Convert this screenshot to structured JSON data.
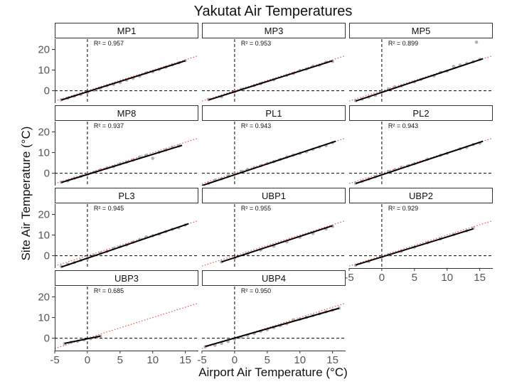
{
  "chart_data": {
    "type": "scatter",
    "title": "Yakutat Air Temperatures",
    "xlabel": "Airport Air Temperature (°C)",
    "ylabel": "Site Air Temperature (°C)",
    "xlim": [
      -5,
      17
    ],
    "ylim": [
      -6,
      25
    ],
    "xticks": [
      -5,
      0,
      5,
      10,
      15
    ],
    "yticks": [
      0,
      10,
      20
    ],
    "reference_lines": {
      "x": 0,
      "y": 0,
      "style": "dashed"
    },
    "one_to_one_line": {
      "color": "#e8504f",
      "style": "dotted"
    },
    "r2_prefix": "R² = ",
    "panels": [
      {
        "name": "MP1",
        "r2": "0.957",
        "fit": {
          "x": [
            -4,
            15
          ],
          "y": [
            -4.5,
            14.5
          ]
        },
        "points": [
          [
            -4,
            -4.4
          ],
          [
            -3,
            -3.6
          ],
          [
            -2,
            -2.6
          ],
          [
            -1,
            -1.8
          ],
          [
            0,
            -0.8
          ],
          [
            1,
            0.2
          ],
          [
            2,
            1.2
          ],
          [
            3,
            2.4
          ],
          [
            4,
            3.1
          ],
          [
            5,
            4.0
          ],
          [
            6,
            5.1
          ],
          [
            7,
            6.0
          ],
          [
            8,
            7.1
          ],
          [
            9,
            8.6
          ],
          [
            10,
            9.2
          ],
          [
            11,
            10.3
          ],
          [
            12,
            11.4
          ],
          [
            13,
            12.6
          ],
          [
            14,
            13.5
          ],
          [
            15,
            14.6
          ]
        ]
      },
      {
        "name": "MP3",
        "r2": "0.953",
        "fit": {
          "x": [
            -4,
            15
          ],
          "y": [
            -4.5,
            14.5
          ]
        },
        "points": [
          [
            -4,
            -4.2
          ],
          [
            -2,
            -2.9
          ],
          [
            0,
            -0.5
          ],
          [
            1,
            0.7
          ],
          [
            3,
            2.5
          ],
          [
            4,
            3.4
          ],
          [
            6,
            5.3
          ],
          [
            8,
            7.5
          ],
          [
            9,
            8.4
          ],
          [
            10,
            9.8
          ],
          [
            11,
            10.5
          ],
          [
            12,
            11.9
          ],
          [
            13,
            12.4
          ],
          [
            14,
            13.8
          ],
          [
            15,
            14.2
          ]
        ]
      },
      {
        "name": "MP5",
        "r2": "0.899",
        "fit": {
          "x": [
            -4,
            15.5
          ],
          "y": [
            -5,
            15.5
          ]
        },
        "points": [
          [
            -4,
            -4.8
          ],
          [
            -3,
            -4.0
          ],
          [
            -2,
            -3.1
          ],
          [
            -1,
            -2.2
          ],
          [
            0,
            -0.6
          ],
          [
            1,
            0.8
          ],
          [
            2,
            1.9
          ],
          [
            3,
            2.4
          ],
          [
            5,
            4.3
          ],
          [
            6,
            5.5
          ],
          [
            8,
            7.2
          ],
          [
            9,
            8.9
          ],
          [
            10,
            9.5
          ],
          [
            11,
            11.8
          ],
          [
            12,
            12.4
          ],
          [
            13,
            13.2
          ],
          [
            14,
            14.1
          ],
          [
            14.5,
            23.5
          ],
          [
            15,
            15.2
          ]
        ]
      },
      {
        "name": "MP8",
        "r2": "0.937",
        "fit": {
          "x": [
            -4,
            14.5
          ],
          "y": [
            -4.5,
            13.5
          ]
        },
        "points": [
          [
            -4,
            -4.3
          ],
          [
            -3,
            -3.7
          ],
          [
            -2,
            -2.4
          ],
          [
            -1,
            -1.5
          ],
          [
            0,
            -0.4
          ],
          [
            1,
            0.5
          ],
          [
            2,
            1.6
          ],
          [
            3,
            2.6
          ],
          [
            4,
            3.2
          ],
          [
            5,
            4.5
          ],
          [
            6,
            5.4
          ],
          [
            7,
            6.4
          ],
          [
            8,
            7.8
          ],
          [
            9,
            8.7
          ],
          [
            10,
            7.2
          ],
          [
            11,
            10.2
          ],
          [
            12,
            11.3
          ],
          [
            13,
            12.6
          ],
          [
            14,
            13.2
          ]
        ]
      },
      {
        "name": "PL1",
        "r2": "0.943",
        "fit": {
          "x": [
            -5,
            15.5
          ],
          "y": [
            -6,
            15.5
          ]
        },
        "points": [
          [
            -5,
            -6
          ],
          [
            -4,
            -4.8
          ],
          [
            -3,
            -3.4
          ],
          [
            -2,
            -2.7
          ],
          [
            -1,
            -1.3
          ],
          [
            0,
            -0.2
          ],
          [
            1,
            0.9
          ],
          [
            2,
            1.8
          ],
          [
            3,
            2.7
          ],
          [
            4,
            3.6
          ],
          [
            5,
            4.7
          ],
          [
            6,
            5.6
          ],
          [
            7,
            6.7
          ],
          [
            8,
            7.9
          ],
          [
            9,
            8.8
          ],
          [
            10,
            9.6
          ],
          [
            11,
            10.4
          ],
          [
            12,
            11.6
          ],
          [
            13,
            12.7
          ],
          [
            14,
            13.4
          ],
          [
            15,
            14.8
          ]
        ]
      },
      {
        "name": "PL2",
        "r2": "0.943",
        "fit": {
          "x": [
            -4,
            15.5
          ],
          "y": [
            -5,
            15.5
          ]
        },
        "points": [
          [
            -4,
            -4.8
          ],
          [
            -3,
            -3.9
          ],
          [
            -2,
            -2.8
          ],
          [
            -1,
            -1.7
          ],
          [
            0,
            -0.5
          ],
          [
            1,
            0.8
          ],
          [
            2,
            1.7
          ],
          [
            3,
            2.9
          ],
          [
            4,
            3.6
          ],
          [
            5,
            4.6
          ],
          [
            7,
            6.8
          ],
          [
            9,
            8.7
          ],
          [
            10,
            9.6
          ],
          [
            12,
            11.8
          ],
          [
            13,
            12.5
          ],
          [
            14,
            13.9
          ],
          [
            15,
            14.6
          ]
        ]
      },
      {
        "name": "PL3",
        "r2": "0.945",
        "fit": {
          "x": [
            -4,
            15.5
          ],
          "y": [
            -5.5,
            15.5
          ]
        },
        "points": [
          [
            -4,
            -5.2
          ],
          [
            -3,
            -4.1
          ],
          [
            -2,
            -3.3
          ],
          [
            -1,
            -2.2
          ],
          [
            0,
            -1.4
          ],
          [
            1,
            0.3
          ],
          [
            2,
            1.2
          ],
          [
            3,
            2.1
          ],
          [
            4,
            3.5
          ],
          [
            5,
            4.4
          ],
          [
            6,
            5.2
          ],
          [
            7,
            6.6
          ],
          [
            8,
            7.8
          ],
          [
            9,
            9.1
          ],
          [
            10,
            9.7
          ],
          [
            11,
            10.4
          ],
          [
            12,
            11.7
          ],
          [
            13,
            12.8
          ],
          [
            14,
            13.5
          ],
          [
            15,
            14.9
          ]
        ]
      },
      {
        "name": "UBP1",
        "r2": "0.955",
        "fit": {
          "x": [
            -2,
            15
          ],
          "y": [
            -3,
            14.5
          ]
        },
        "points": [
          [
            -2,
            -3
          ],
          [
            0,
            -1.2
          ],
          [
            2,
            0.9
          ],
          [
            4,
            2.8
          ],
          [
            6,
            4.6
          ],
          [
            8,
            6.7
          ],
          [
            10,
            8.9
          ],
          [
            12,
            10.8
          ],
          [
            14,
            12.9
          ],
          [
            15,
            14.2
          ]
        ]
      },
      {
        "name": "UBP2",
        "r2": "0.929",
        "fit": {
          "x": [
            -4,
            14
          ],
          "y": [
            -4.5,
            13
          ]
        },
        "points": [
          [
            -4,
            -4.6
          ],
          [
            -2,
            -2.8
          ],
          [
            0,
            -0.7
          ],
          [
            1,
            0.4
          ],
          [
            3,
            2.2
          ],
          [
            5,
            4.1
          ],
          [
            7,
            6.3
          ],
          [
            9,
            8.2
          ],
          [
            11,
            10.3
          ],
          [
            13,
            12.1
          ],
          [
            14,
            13.3
          ]
        ]
      },
      {
        "name": "UBP3",
        "r2": "0.685",
        "fit": {
          "x": [
            -3.5,
            2
          ],
          "y": [
            -2.5,
            1
          ]
        },
        "points": [
          [
            -3.5,
            -2.7
          ],
          [
            -2.5,
            -2.0
          ],
          [
            -1.5,
            -1.5
          ],
          [
            -0.5,
            -0.8
          ],
          [
            0.5,
            -0.2
          ],
          [
            1.5,
            0.6
          ],
          [
            2,
            1.0
          ]
        ]
      },
      {
        "name": "UBP4",
        "r2": "0.950",
        "fit": {
          "x": [
            -4.5,
            16
          ],
          "y": [
            -4,
            14.5
          ]
        },
        "points": [
          [
            -4.5,
            -4.2
          ],
          [
            -3,
            -3.4
          ],
          [
            -2,
            -2.5
          ],
          [
            -1,
            -1.6
          ],
          [
            0,
            -0.5
          ],
          [
            1,
            0.5
          ],
          [
            2,
            1.4
          ],
          [
            3,
            2.3
          ],
          [
            4,
            3.3
          ],
          [
            5,
            4.1
          ],
          [
            6,
            5.1
          ],
          [
            7,
            6.1
          ],
          [
            8,
            7.0
          ],
          [
            9,
            8.9
          ],
          [
            10,
            9.2
          ],
          [
            11,
            10.1
          ],
          [
            12,
            10.9
          ],
          [
            13,
            11.8
          ],
          [
            14,
            12.8
          ],
          [
            15,
            13.6
          ],
          [
            16,
            14.6
          ]
        ]
      }
    ]
  },
  "colors": {
    "points": "#a9a9a9",
    "fit_line": "#000000",
    "one_to_one": "#e8504f",
    "reference": "#000000",
    "strip_fill": "#ffffff",
    "strip_border": "#333333"
  }
}
